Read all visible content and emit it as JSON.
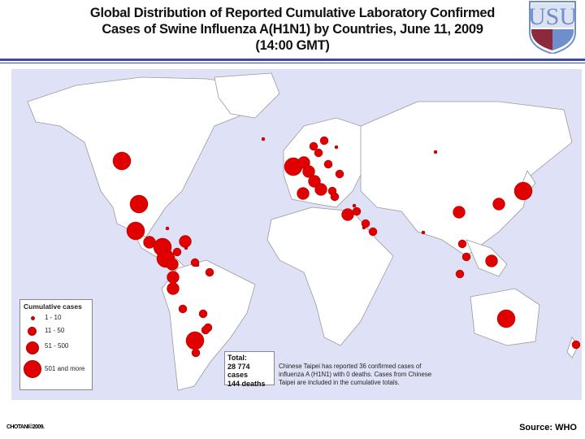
{
  "header": {
    "title_lines": [
      "Global Distribution of Reported Cumulative Laboratory Confirmed",
      "Cases of Swine Influenza A(H1N1) by Countries, June 11, 2009",
      "(14:00 GMT)"
    ]
  },
  "logo": {
    "letters": "USU",
    "colors": {
      "blue": "#6f8fcc",
      "maroon": "#8a2a3c"
    }
  },
  "legend": {
    "title": "Cumulative cases",
    "items": [
      "1 - 10",
      "11 - 50",
      "51 - 500",
      "501 and more"
    ]
  },
  "total": {
    "label": "Total:",
    "cases": "28 774 cases",
    "deaths": "144 deaths"
  },
  "note": "Chinese Taipei has reported 36 confirmed cases of influenza A (H1N1) with 0 deaths. Cases from Chinese Taipei are included in the cumulative totals.",
  "footer": {
    "credit": "CHOTANI©2009.",
    "source": "Source: WHO"
  },
  "colors": {
    "marker": "#e00000",
    "ocean": "#dfe2f6",
    "land": "#ffffff",
    "border": "#9a9a9a",
    "rule": "#3b4aa8"
  }
}
